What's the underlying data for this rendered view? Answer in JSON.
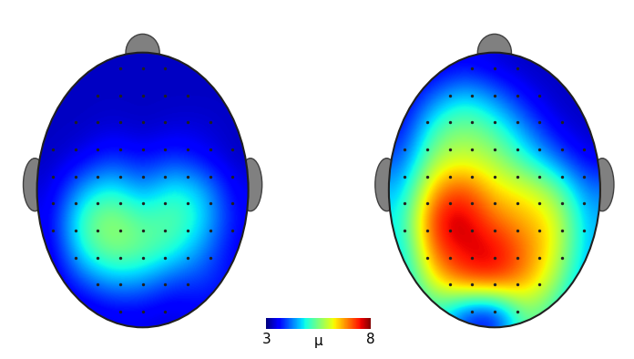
{
  "chart_data": {
    "type": "heatmap",
    "tick_labels": false,
    "cells": [
      [
        [
          3.3,
          3.3,
          3.3,
          3.3,
          3.3,
          3.3,
          3.3
        ],
        [
          3.3,
          3.3,
          3.3,
          3.3,
          3.3,
          3.3,
          3.3
        ],
        [
          3.3,
          3.3,
          3.4,
          3.3,
          3.4,
          3.4,
          3.3
        ],
        [
          3.3,
          3.5,
          3.9,
          3.6,
          3.9,
          3.6,
          3.3
        ],
        [
          3.4,
          4.5,
          5.0,
          4.3,
          5.0,
          4.6,
          3.5
        ],
        [
          3.5,
          5.3,
          5.8,
          5.2,
          5.4,
          4.8,
          3.6
        ],
        [
          3.4,
          5.0,
          5.6,
          5.4,
          5.0,
          4.3,
          3.5
        ],
        [
          3.3,
          4.0,
          4.5,
          4.4,
          3.9,
          3.9,
          3.6
        ],
        [
          3.3,
          3.3,
          3.5,
          3.5,
          3.4,
          3.6,
          3.5
        ]
      ],
      [
        [
          3.3,
          3.4,
          3.6,
          3.4,
          3.3,
          3.3,
          3.3
        ],
        [
          3.4,
          4.2,
          4.8,
          4.3,
          3.6,
          3.3,
          3.3
        ],
        [
          3.6,
          5.2,
          5.6,
          5.2,
          4.3,
          3.5,
          3.3
        ],
        [
          4.0,
          5.8,
          6.0,
          5.8,
          5.0,
          4.2,
          3.5
        ],
        [
          4.5,
          6.8,
          7.3,
          6.3,
          6.2,
          5.6,
          4.2
        ],
        [
          4.8,
          7.6,
          7.8,
          7.0,
          6.6,
          6.3,
          4.5
        ],
        [
          4.6,
          7.2,
          7.6,
          7.7,
          7.0,
          6.2,
          4.5
        ],
        [
          4.5,
          6.3,
          7.2,
          7.4,
          6.8,
          5.8,
          4.3
        ],
        [
          4.2,
          5.2,
          3.8,
          3.5,
          5.6,
          5.0,
          4.0
        ]
      ]
    ],
    "colorbar": {
      "range": [
        3,
        8
      ],
      "ticks": [
        3,
        8
      ],
      "label": "μ"
    }
  }
}
